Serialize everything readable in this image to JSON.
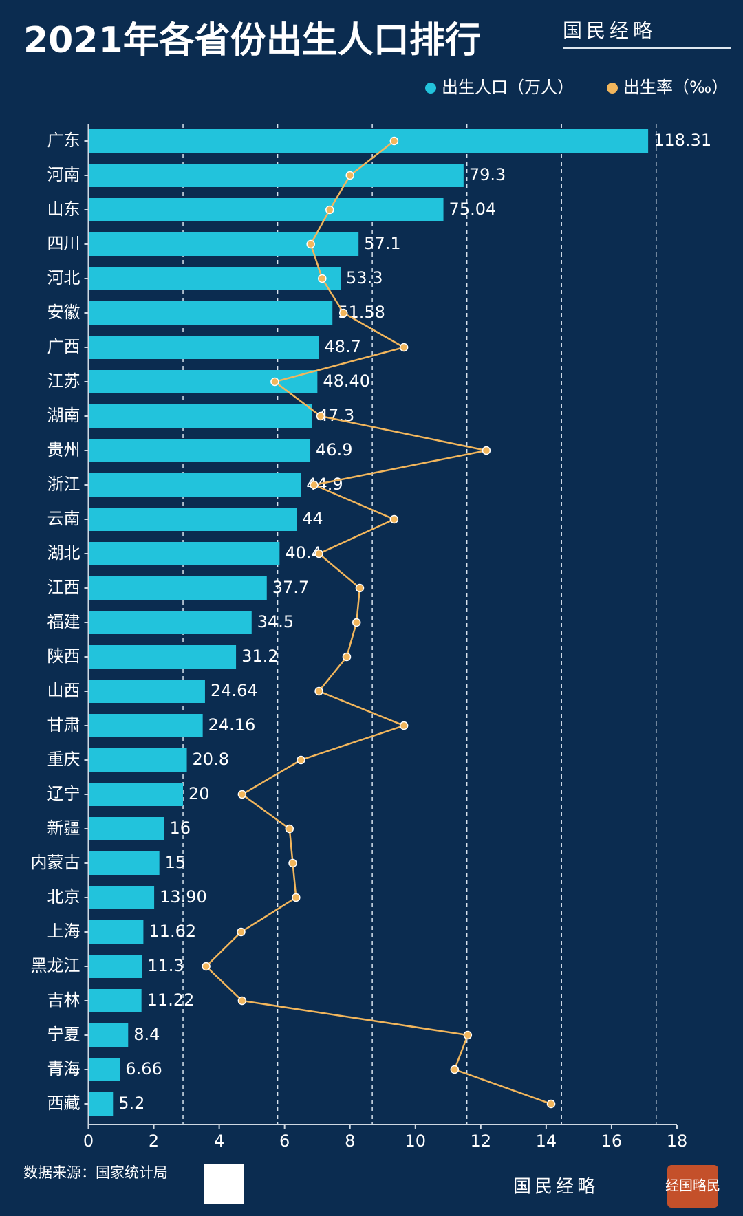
{
  "chart_data": {
    "type": "bar-line",
    "title": "2021年各省份出生人口排行",
    "brand": "国民经略",
    "source": "数据来源：国家统计局",
    "seal": "经国略民",
    "categories": [
      "广东",
      "河南",
      "山东",
      "四川",
      "河北",
      "安徽",
      "广西",
      "江苏",
      "湖南",
      "贵州",
      "浙江",
      "云南",
      "湖北",
      "江西",
      "福建",
      "陕西",
      "山西",
      "甘肃",
      "重庆",
      "辽宁",
      "新疆",
      "内蒙古",
      "北京",
      "上海",
      "黑龙江",
      "吉林",
      "宁夏",
      "青海",
      "西藏"
    ],
    "series": [
      {
        "name": "出生人口（万人）",
        "color": "#22c3dc",
        "axis": "x2",
        "values": [
          118.31,
          79.3,
          75.04,
          57.1,
          53.3,
          51.58,
          48.7,
          48.4,
          47.3,
          46.9,
          44.9,
          44,
          40.4,
          37.7,
          34.5,
          31.2,
          24.64,
          24.16,
          20.8,
          20,
          16,
          15,
          13.9,
          11.62,
          11.3,
          11.22,
          8.4,
          6.66,
          5.2
        ],
        "value_labels": [
          "118.31",
          "79.3",
          "75.04",
          "57.1",
          "53.3",
          "51.58",
          "48.7",
          "48.40",
          "47.3",
          "46.9",
          "44.9",
          "44",
          "40.4",
          "37.7",
          "34.5",
          "31.2",
          "24.64",
          "24.16",
          "20.8",
          "20",
          "16",
          "15",
          "13.90",
          "11.62",
          "11.3",
          "11.22",
          "8.4",
          "6.66",
          "5.2"
        ]
      },
      {
        "name": "出生率（‰）",
        "color": "#f2b65c",
        "values": [
          9.35,
          8.0,
          7.38,
          6.8,
          7.15,
          7.8,
          9.65,
          5.7,
          7.1,
          12.17,
          6.9,
          9.35,
          7.05,
          8.3,
          8.2,
          7.9,
          7.05,
          9.65,
          6.5,
          4.7,
          6.15,
          6.25,
          6.35,
          4.67,
          3.6,
          4.7,
          11.6,
          11.2,
          14.15
        ]
      }
    ],
    "xlim": [
      0,
      18
    ],
    "xticks": [
      0,
      2,
      4,
      6,
      8,
      10,
      12,
      14,
      16,
      18
    ],
    "x2lim": [
      0,
      124.4
    ],
    "x2grid": [
      20,
      40,
      60,
      80,
      100,
      120
    ]
  }
}
